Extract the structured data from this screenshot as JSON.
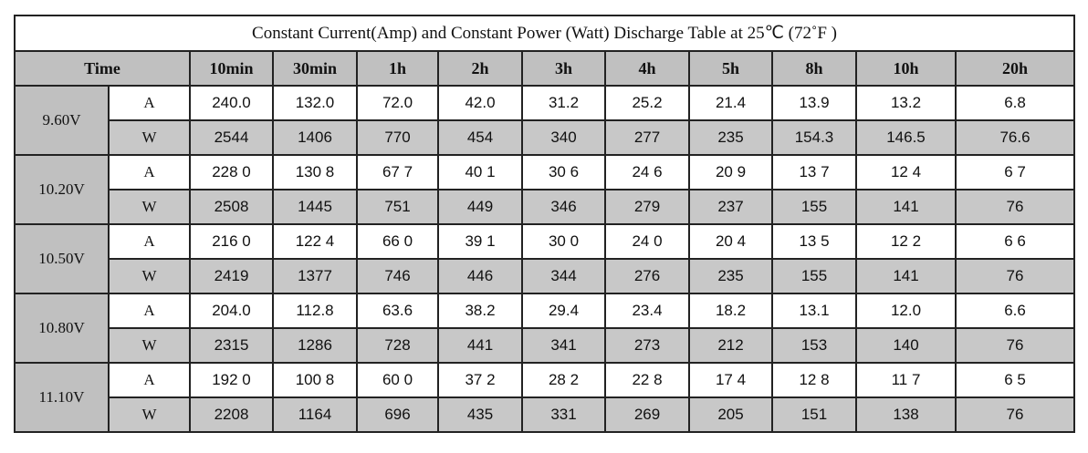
{
  "chart_data": {
    "type": "table",
    "title": "Constant Current(Amp) and Constant Power (Watt) Discharge Table at 25℃ (72˚F )",
    "header_label": "Time",
    "columns": [
      "10min",
      "30min",
      "1h",
      "2h",
      "3h",
      "4h",
      "5h",
      "8h",
      "10h",
      "20h"
    ],
    "groups": [
      {
        "voltage": "9.60V",
        "rows": [
          {
            "unit": "A",
            "values": [
              "240.0",
              "132.0",
              "72.0",
              "42.0",
              "31.2",
              "25.2",
              "21.4",
              "13.9",
              "13.2",
              "6.8"
            ]
          },
          {
            "unit": "W",
            "values": [
              "2544",
              "1406",
              "770",
              "454",
              "340",
              "277",
              "235",
              "154.3",
              "146.5",
              "76.6"
            ]
          }
        ]
      },
      {
        "voltage": "10.20V",
        "rows": [
          {
            "unit": "A",
            "values": [
              "228 0",
              "130 8",
              "67 7",
              "40 1",
              "30 6",
              "24 6",
              "20 9",
              "13 7",
              "12 4",
              "6 7"
            ]
          },
          {
            "unit": "W",
            "values": [
              "2508",
              "1445",
              "751",
              "449",
              "346",
              "279",
              "237",
              "155",
              "141",
              "76"
            ]
          }
        ]
      },
      {
        "voltage": "10.50V",
        "rows": [
          {
            "unit": "A",
            "values": [
              "216 0",
              "122 4",
              "66 0",
              "39 1",
              "30 0",
              "24 0",
              "20 4",
              "13 5",
              "12 2",
              "6 6"
            ]
          },
          {
            "unit": "W",
            "values": [
              "2419",
              "1377",
              "746",
              "446",
              "344",
              "276",
              "235",
              "155",
              "141",
              "76"
            ]
          }
        ]
      },
      {
        "voltage": "10.80V",
        "rows": [
          {
            "unit": "A",
            "values": [
              "204.0",
              "112.8",
              "63.6",
              "38.2",
              "29.4",
              "23.4",
              "18.2",
              "13.1",
              "12.0",
              "6.6"
            ]
          },
          {
            "unit": "W",
            "values": [
              "2315",
              "1286",
              "728",
              "441",
              "341",
              "273",
              "212",
              "153",
              "140",
              "76"
            ]
          }
        ]
      },
      {
        "voltage": "11.10V",
        "rows": [
          {
            "unit": "A",
            "values": [
              "192 0",
              "100 8",
              "60 0",
              "37 2",
              "28 2",
              "22 8",
              "17 4",
              "12 8",
              "11 7",
              "6 5"
            ]
          },
          {
            "unit": "W",
            "values": [
              "2208",
              "1164",
              "696",
              "435",
              "331",
              "269",
              "205",
              "151",
              "138",
              "76"
            ]
          }
        ]
      }
    ]
  },
  "colors": {
    "header_bg": "#c0c0c0",
    "watt_row_bg": "#c8c8c8",
    "amp_row_bg": "#ffffff",
    "border": "#222222"
  }
}
